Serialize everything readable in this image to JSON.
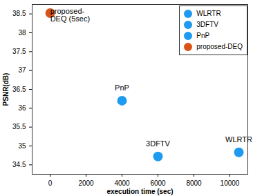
{
  "chart_data": {
    "type": "scatter",
    "xlabel": "execution time (sec)",
    "ylabel": "PSNR(dB)",
    "series": [
      {
        "name": "WLRTR",
        "color": "#1e9bf0",
        "x": [
          10500
        ],
        "values": [
          34.83
        ]
      },
      {
        "name": "3DFTV",
        "color": "#1e9bf0",
        "x": [
          6000
        ],
        "values": [
          34.72
        ]
      },
      {
        "name": "PnP",
        "color": "#1e9bf0",
        "x": [
          4000
        ],
        "values": [
          36.2
        ]
      },
      {
        "name": "proposed-DEQ",
        "color": "#d95319",
        "x": [
          5
        ],
        "values": [
          38.52
        ]
      }
    ],
    "annotations": [
      {
        "series": "proposed-DEQ",
        "text": "proposed-\nDEQ (5sec)"
      },
      {
        "series": "PnP",
        "text": "PnP"
      },
      {
        "series": "3DFTV",
        "text": "3DFTV"
      },
      {
        "series": "WLRTR",
        "text": "WLRTR"
      }
    ],
    "xlim": [
      -1000,
      11000
    ],
    "xticks": [
      0,
      2000,
      4000,
      6000,
      8000,
      10000
    ],
    "ylim": [
      34.25,
      38.75
    ],
    "yticks": [
      34.5,
      35,
      35.5,
      36,
      36.5,
      37,
      37.5,
      38,
      38.5
    ],
    "grid": false,
    "legend": "top-right",
    "marker": "circle"
  }
}
